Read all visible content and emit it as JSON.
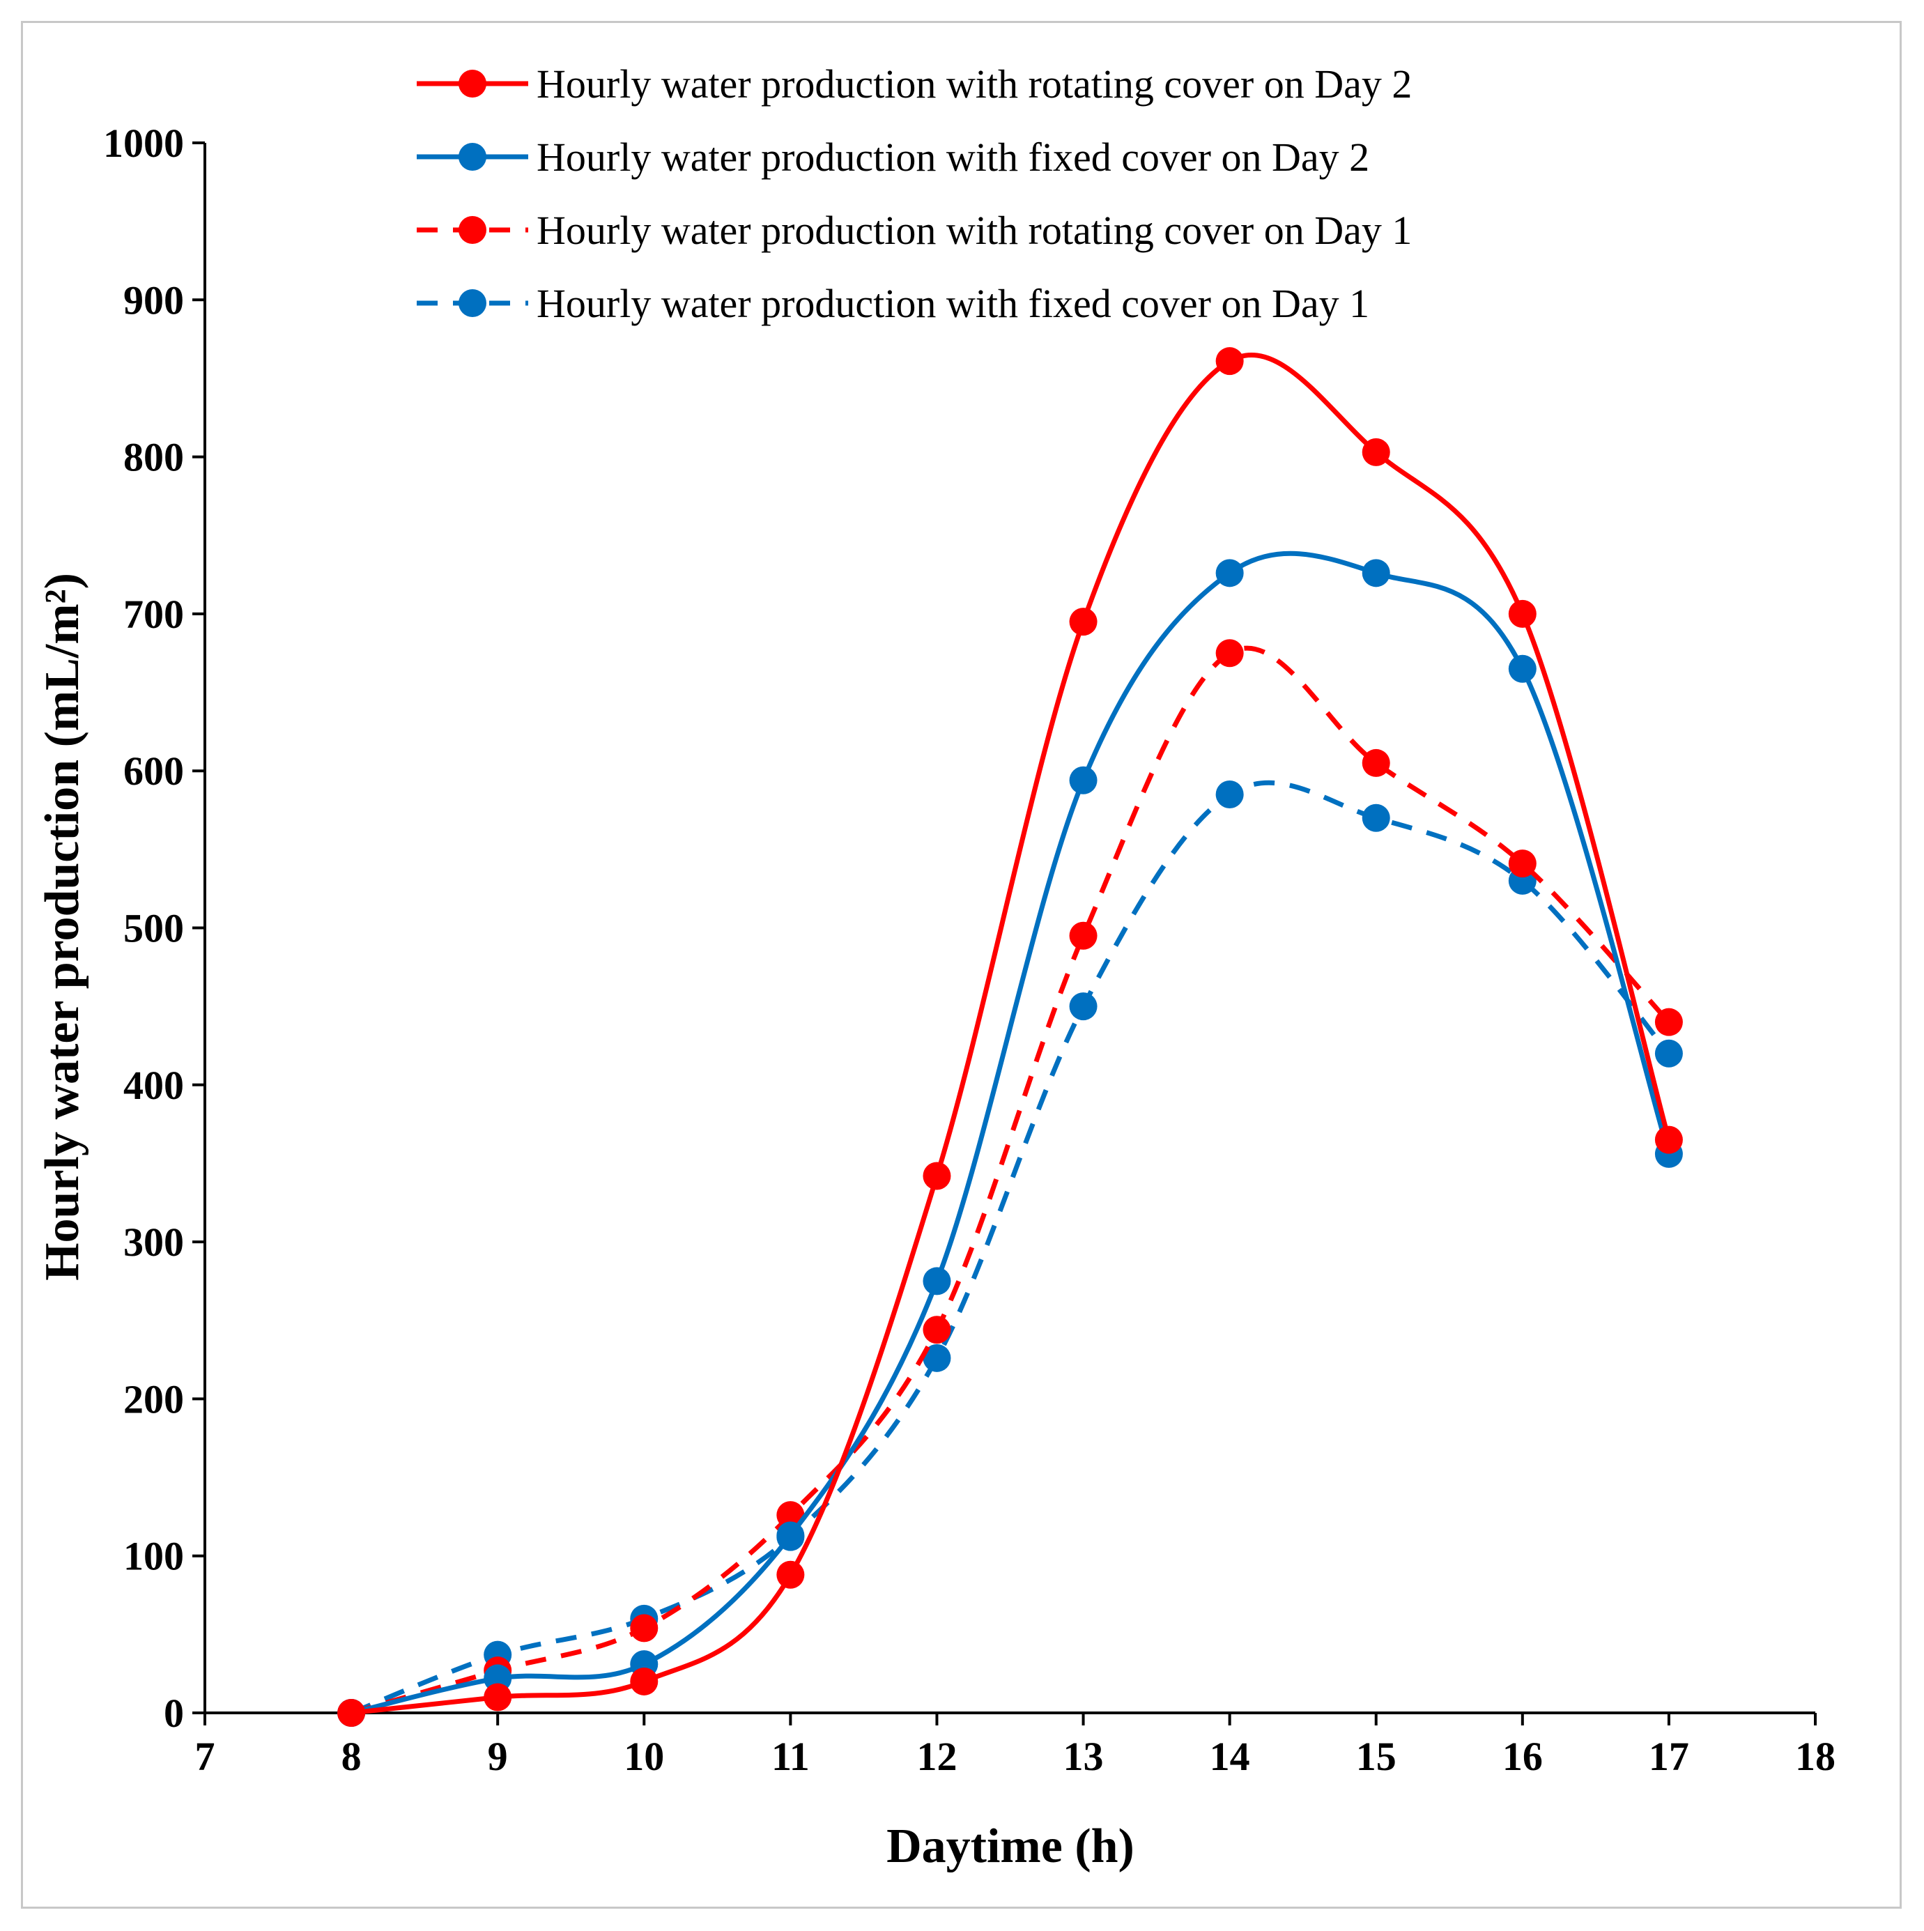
{
  "chart_data": {
    "type": "line",
    "title": "",
    "xlabel": "Daytime (h)",
    "ylabel": "Hourly water production (mL/m²)",
    "xlim": [
      7,
      18
    ],
    "ylim": [
      0,
      1000
    ],
    "xticks": [
      "7",
      "8",
      "9",
      "10",
      "11",
      "12",
      "13",
      "14",
      "15",
      "16",
      "17",
      "18"
    ],
    "yticks": [
      "0",
      "100",
      "200",
      "300",
      "400",
      "500",
      "600",
      "700",
      "800",
      "900",
      "1000"
    ],
    "legend_position": "top-center",
    "grid": false,
    "x": [
      8,
      9,
      10,
      11,
      12,
      13,
      14,
      15,
      16,
      17
    ],
    "series": [
      {
        "name": "Hourly water production with rotating cover on Day 2",
        "color": "#ff0000",
        "dash": "solid",
        "values": [
          0,
          10,
          20,
          88,
          342,
          695,
          861,
          803,
          700,
          365
        ]
      },
      {
        "name": "Hourly water production with fixed cover on Day 2",
        "color": "#0070c0",
        "dash": "solid",
        "values": [
          0,
          22,
          31,
          113,
          275,
          594,
          726,
          726,
          665,
          356
        ]
      },
      {
        "name": "Hourly water production with rotating cover on Day 1",
        "color": "#ff0000",
        "dash": "dashed",
        "values": [
          0,
          27,
          54,
          126,
          244,
          495,
          675,
          605,
          541,
          440
        ]
      },
      {
        "name": "Hourly water production with fixed cover on Day 1",
        "color": "#0070c0",
        "dash": "dashed",
        "values": [
          0,
          37,
          60,
          112,
          226,
          450,
          585,
          570,
          530,
          420
        ]
      }
    ]
  }
}
